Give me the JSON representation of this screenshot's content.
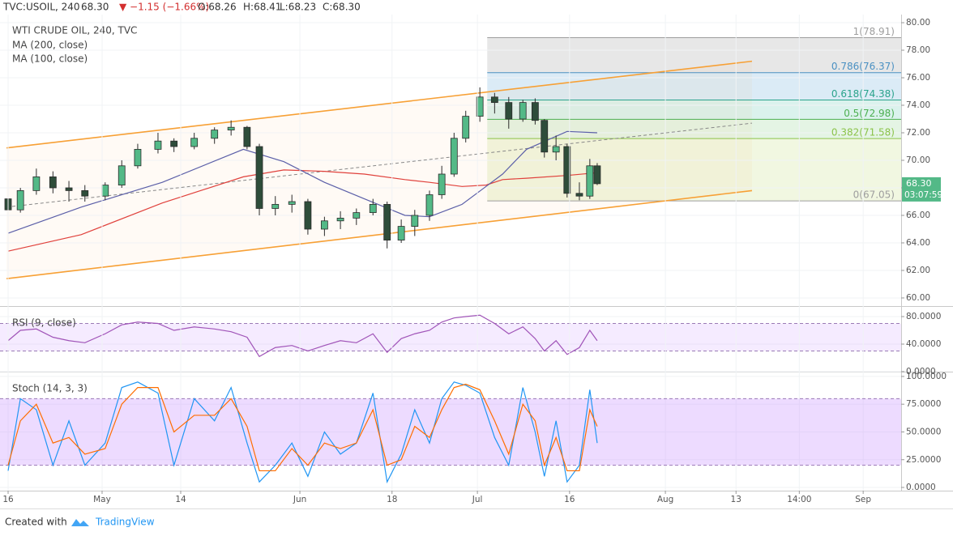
{
  "header": {
    "symbol": "TVC:USOIL, 240",
    "price": "68.30",
    "change": "▼ −1.15 (−1.66%)",
    "open": "O:68.26",
    "high": "H:68.41",
    "low": "L:68.23",
    "close": "C:68.30"
  },
  "footer": {
    "created": "Created with",
    "brand": "TradingView"
  },
  "chart_data": [
    {
      "type": "candlestick",
      "title": "WTI CRUDE OIL, 240, TVC",
      "xlim": [
        -1.32,
        145.38
      ],
      "ylim": [
        59.41,
        80.59
      ],
      "yticks": [
        {
          "value": 60,
          "label": "60.00"
        },
        {
          "value": 62,
          "label": "62.00"
        },
        {
          "value": 64,
          "label": "64.00"
        },
        {
          "value": 66,
          "label": "66.00"
        },
        {
          "value": 68,
          "label": "68.00"
        },
        {
          "value": 70,
          "label": "70.00"
        },
        {
          "value": 72,
          "label": "72.00"
        },
        {
          "value": 74,
          "label": "74.00"
        },
        {
          "value": 76,
          "label": "76.00"
        },
        {
          "value": 78,
          "label": "78.00"
        },
        {
          "value": 80,
          "label": "80.00"
        }
      ],
      "color_up": "#53b987",
      "color_down": "#2e4d3a",
      "x": [
        0,
        2,
        4.6,
        7.3,
        9.9,
        12.5,
        15.8,
        18.5,
        21.1,
        24.4,
        27,
        30.3,
        33.6,
        36.3,
        38.9,
        40.9,
        43.5,
        46.2,
        48.8,
        51.5,
        54.1,
        56.7,
        59.4,
        61.7,
        64,
        66.2,
        68.6,
        70.6,
        72.6,
        74.5,
        76.8,
        79.2,
        81.5,
        83.8,
        85.8,
        87.3,
        89.2,
        91,
        93,
        94.7,
        95.9
      ],
      "open": [
        67.2,
        66.4,
        67.8,
        68.8,
        68.0,
        67.8,
        67.4,
        68.2,
        69.6,
        70.8,
        71.4,
        71.0,
        71.6,
        72.2,
        72.4,
        71.0,
        66.5,
        66.8,
        67.0,
        65.0,
        65.6,
        65.8,
        66.2,
        66.8,
        64.2,
        65.2,
        66.0,
        67.5,
        69.0,
        71.6,
        73.2,
        74.6,
        74.2,
        73.0,
        74.2,
        72.9,
        70.6,
        71.0,
        67.6,
        67.4,
        69.6
      ],
      "high": [
        67.5,
        68.0,
        69.4,
        69.2,
        68.5,
        68.2,
        68.4,
        70.0,
        71.2,
        72.0,
        71.6,
        72.0,
        72.4,
        72.9,
        72.5,
        71.2,
        67.4,
        67.5,
        67.2,
        65.9,
        66.3,
        66.5,
        67.2,
        67.0,
        65.7,
        66.4,
        67.8,
        69.6,
        72.0,
        73.6,
        75.3,
        74.9,
        74.6,
        74.4,
        74.5,
        73.0,
        71.8,
        71.2,
        68.4,
        70.1,
        69.8
      ],
      "low": [
        66.0,
        66.2,
        67.5,
        67.6,
        67.0,
        67.0,
        67.1,
        68.0,
        69.4,
        70.5,
        70.6,
        70.8,
        71.2,
        71.8,
        70.8,
        66.0,
        66.0,
        66.2,
        64.6,
        64.5,
        65.0,
        65.3,
        66.0,
        63.6,
        64.0,
        64.5,
        65.6,
        67.2,
        68.8,
        71.3,
        72.8,
        73.4,
        72.3,
        72.8,
        72.6,
        70.2,
        70.0,
        67.3,
        67.1,
        67.2,
        68.2
      ],
      "close": [
        66.4,
        67.8,
        68.8,
        68.0,
        67.8,
        67.4,
        68.2,
        69.6,
        70.8,
        71.4,
        71.0,
        71.6,
        72.2,
        72.4,
        71.0,
        66.5,
        66.8,
        67.0,
        65.0,
        65.6,
        65.8,
        66.2,
        66.8,
        64.2,
        65.2,
        66.0,
        67.5,
        69.0,
        71.6,
        73.2,
        74.6,
        74.2,
        73.0,
        74.2,
        72.9,
        70.6,
        71.0,
        67.6,
        67.4,
        69.6,
        68.3
      ],
      "series": [
        {
          "name": "MA (200, close)",
          "color": "#e0413c",
          "x": [
            0,
            11.9,
            25.1,
            38.3,
            44.9,
            51.5,
            58,
            64.6,
            68.6,
            73.9,
            77.8,
            80.5,
            84.4,
            91,
            95.9
          ],
          "values": [
            63.4,
            64.6,
            66.9,
            68.8,
            69.3,
            69.2,
            69.0,
            68.6,
            68.4,
            68.1,
            68.2,
            68.6,
            68.7,
            68.9,
            69.1
          ]
        },
        {
          "name": "MA (100, close)",
          "color": "#5b5fa8",
          "x": [
            0,
            11.9,
            25.1,
            38.3,
            44.9,
            51.5,
            58,
            64.6,
            68.6,
            73.9,
            77.8,
            80.5,
            84.4,
            91,
            95.9
          ],
          "values": [
            64.7,
            66.6,
            68.4,
            70.8,
            69.9,
            68.4,
            67.2,
            66.0,
            65.9,
            66.8,
            68.1,
            69.0,
            70.8,
            72.1,
            72.0
          ]
        }
      ],
      "trendlines": [
        {
          "color": "#f7a035",
          "x": [
            -0.26,
            121.1
          ],
          "values": [
            70.9,
            77.2
          ]
        },
        {
          "color": "#f7a035",
          "x": [
            -0.26,
            121.1
          ],
          "values": [
            61.4,
            67.8
          ]
        },
        {
          "color": "#888888",
          "dashed": true,
          "x": [
            -0.26,
            121.1
          ],
          "values": [
            66.6,
            72.7
          ]
        }
      ],
      "fib": {
        "x_start": 78,
        "levels": [
          {
            "value": 78.91,
            "label": "1(78.91)",
            "color": "#9e9e9e",
            "fill": "#e3e3e3"
          },
          {
            "value": 76.37,
            "label": "0.786(76.37)",
            "color": "#4a90c2",
            "fill": "#d5e8f5"
          },
          {
            "value": 74.38,
            "label": "0.618(74.38)",
            "color": "#2aa38c",
            "fill": "#d5f0ea"
          },
          {
            "value": 72.98,
            "label": "0.5(72.98)",
            "color": "#4caf50",
            "fill": "#dff2df"
          },
          {
            "value": 71.58,
            "label": "0.382(71.58)",
            "color": "#8bc34a",
            "fill": "#eef6dc"
          },
          {
            "value": 67.05,
            "label": "0(67.05)",
            "color": "#9e9e9e"
          }
        ]
      },
      "last_price": {
        "value": 68.3,
        "label": "68.30",
        "countdown": "03:07:59"
      }
    },
    {
      "type": "line",
      "title": "RSI (9, close)",
      "xlim": [
        -1.32,
        145.38
      ],
      "ylim": [
        0,
        94.1
      ],
      "yticks": [
        {
          "value": 0,
          "label": "0.0000"
        },
        {
          "value": 40,
          "label": "40.0000"
        },
        {
          "value": 80,
          "label": "80.0000"
        }
      ],
      "band": [
        30,
        70
      ],
      "series": [
        {
          "color": "#a054b8",
          "x": [
            0,
            2,
            4.6,
            7.3,
            9.9,
            12.5,
            15.8,
            18.5,
            21.1,
            24.4,
            27,
            30.3,
            33.6,
            36.3,
            38.9,
            40.9,
            43.5,
            46.2,
            48.8,
            51.5,
            54.1,
            56.7,
            59.4,
            61.7,
            64,
            66.2,
            68.6,
            70.6,
            72.6,
            74.5,
            76.8,
            79.2,
            81.5,
            83.8,
            85.8,
            87.3,
            89.2,
            91,
            93,
            94.7,
            95.9
          ],
          "values": [
            45,
            60,
            62,
            50,
            45,
            42,
            55,
            68,
            72,
            70,
            60,
            65,
            62,
            58,
            50,
            22,
            35,
            38,
            30,
            38,
            45,
            42,
            55,
            28,
            48,
            55,
            60,
            72,
            78,
            80,
            82,
            70,
            55,
            65,
            48,
            30,
            45,
            25,
            35,
            60,
            45
          ]
        }
      ]
    },
    {
      "type": "line",
      "title": "Stoch (14, 3, 3)",
      "xlim": [
        -1.32,
        145.38
      ],
      "ylim": [
        -2.9,
        103.6
      ],
      "yticks": [
        {
          "value": 0,
          "label": "0.0000"
        },
        {
          "value": 25,
          "label": "25.0000"
        },
        {
          "value": 50,
          "label": "50.0000"
        },
        {
          "value": 75,
          "label": "75.0000"
        },
        {
          "value": 100,
          "label": "100.0000"
        }
      ],
      "band": [
        20,
        80
      ],
      "xticks": [
        {
          "value": 0,
          "label": "16"
        },
        {
          "value": 15.3,
          "label": "May"
        },
        {
          "value": 28.1,
          "label": "14"
        },
        {
          "value": 47.5,
          "label": "Jun"
        },
        {
          "value": 62.5,
          "label": "18"
        },
        {
          "value": 76.4,
          "label": "Jul"
        },
        {
          "value": 91.4,
          "label": "16"
        },
        {
          "value": 107,
          "label": "Aug"
        },
        {
          "value": 118.5,
          "label": "13"
        },
        {
          "value": 128.8,
          "label": "14:00"
        },
        {
          "value": 139.2,
          "label": "Sep"
        }
      ],
      "series": [
        {
          "color": "#2196f3",
          "x": [
            0,
            2,
            4.6,
            7.3,
            9.9,
            12.5,
            15.8,
            18.5,
            21.1,
            24.4,
            27,
            30.3,
            33.6,
            36.3,
            38.9,
            40.9,
            43.5,
            46.2,
            48.8,
            51.5,
            54.1,
            56.7,
            59.4,
            61.7,
            64,
            66.2,
            68.6,
            70.6,
            72.6,
            74.5,
            76.8,
            79.2,
            81.5,
            83.8,
            85.8,
            87.3,
            89.2,
            91,
            93,
            94.7,
            95.9
          ],
          "values": [
            15,
            80,
            70,
            20,
            60,
            20,
            40,
            90,
            95,
            85,
            20,
            80,
            60,
            90,
            40,
            5,
            20,
            40,
            10,
            50,
            30,
            40,
            85,
            5,
            30,
            70,
            40,
            80,
            95,
            92,
            85,
            45,
            20,
            90,
            50,
            10,
            60,
            5,
            20,
            88,
            40
          ]
        },
        {
          "color": "#ff6d00",
          "x": [
            0,
            2,
            4.6,
            7.3,
            9.9,
            12.5,
            15.8,
            18.5,
            21.1,
            24.4,
            27,
            30.3,
            33.6,
            36.3,
            38.9,
            40.9,
            43.5,
            46.2,
            48.8,
            51.5,
            54.1,
            56.7,
            59.4,
            61.7,
            64,
            66.2,
            68.6,
            70.6,
            72.6,
            74.5,
            76.8,
            79.2,
            81.5,
            83.8,
            85.8,
            87.3,
            89.2,
            91,
            93,
            94.7,
            95.9
          ],
          "values": [
            20,
            60,
            75,
            40,
            45,
            30,
            35,
            75,
            90,
            90,
            50,
            65,
            65,
            80,
            55,
            15,
            15,
            35,
            20,
            40,
            35,
            40,
            70,
            20,
            25,
            55,
            45,
            70,
            90,
            93,
            88,
            60,
            30,
            75,
            60,
            20,
            45,
            15,
            15,
            70,
            55
          ]
        }
      ]
    }
  ]
}
